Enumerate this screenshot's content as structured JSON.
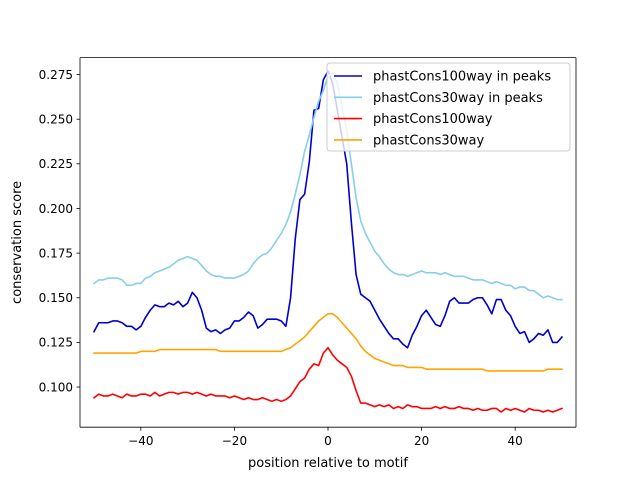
{
  "chart_data": {
    "type": "line",
    "title": "",
    "xlabel": "position relative to motif",
    "ylabel": "conservation score",
    "xlim": [
      -53,
      53
    ],
    "ylim": [
      0.0775,
      0.2845
    ],
    "xticks": [
      -40,
      -20,
      0,
      20,
      40
    ],
    "xtick_labels": [
      "−40",
      "−20",
      "0",
      "20",
      "40"
    ],
    "yticks": [
      0.1,
      0.125,
      0.15,
      0.175,
      0.2,
      0.225,
      0.25,
      0.275
    ],
    "ytick_labels": [
      "0.100",
      "0.125",
      "0.150",
      "0.175",
      "0.200",
      "0.225",
      "0.250",
      "0.275"
    ],
    "grid": false,
    "legend_position": "top-right",
    "x": [
      -50,
      -49,
      -48,
      -47,
      -46,
      -45,
      -44,
      -43,
      -42,
      -41,
      -40,
      -39,
      -38,
      -37,
      -36,
      -35,
      -34,
      -33,
      -32,
      -31,
      -30,
      -29,
      -28,
      -27,
      -26,
      -25,
      -24,
      -23,
      -22,
      -21,
      -20,
      -19,
      -18,
      -17,
      -16,
      -15,
      -14,
      -13,
      -12,
      -11,
      -10,
      -9,
      -8,
      -7,
      -6,
      -5,
      -4,
      -3,
      -2,
      -1,
      0,
      1,
      2,
      3,
      4,
      5,
      6,
      7,
      8,
      9,
      10,
      11,
      12,
      13,
      14,
      15,
      16,
      17,
      18,
      19,
      20,
      21,
      22,
      23,
      24,
      25,
      26,
      27,
      28,
      29,
      30,
      31,
      32,
      33,
      34,
      35,
      36,
      37,
      38,
      39,
      40,
      41,
      42,
      43,
      44,
      45,
      46,
      47,
      48,
      49,
      50
    ],
    "series": [
      {
        "name": "phastCons100way in peaks",
        "color": "#0000cd",
        "values": [
          0.131,
          0.136,
          0.136,
          0.136,
          0.137,
          0.137,
          0.136,
          0.134,
          0.134,
          0.132,
          0.134,
          0.139,
          0.143,
          0.146,
          0.145,
          0.145,
          0.147,
          0.146,
          0.148,
          0.145,
          0.147,
          0.153,
          0.15,
          0.143,
          0.133,
          0.131,
          0.132,
          0.13,
          0.132,
          0.133,
          0.137,
          0.137,
          0.139,
          0.142,
          0.14,
          0.133,
          0.135,
          0.138,
          0.138,
          0.138,
          0.137,
          0.134,
          0.15,
          0.183,
          0.205,
          0.208,
          0.226,
          0.255,
          0.256,
          0.272,
          0.277,
          0.27,
          0.255,
          0.24,
          0.225,
          0.192,
          0.163,
          0.152,
          0.15,
          0.148,
          0.143,
          0.138,
          0.134,
          0.13,
          0.127,
          0.127,
          0.124,
          0.122,
          0.129,
          0.134,
          0.14,
          0.143,
          0.139,
          0.135,
          0.134,
          0.14,
          0.148,
          0.15,
          0.147,
          0.147,
          0.147,
          0.149,
          0.15,
          0.15,
          0.146,
          0.141,
          0.149,
          0.149,
          0.143,
          0.14,
          0.134,
          0.13,
          0.131,
          0.125,
          0.127,
          0.13,
          0.129,
          0.132,
          0.125,
          0.125,
          0.128
        ]
      },
      {
        "name": "phastCons30way in peaks",
        "color": "#87ceeb",
        "values": [
          0.158,
          0.16,
          0.16,
          0.161,
          0.161,
          0.161,
          0.16,
          0.157,
          0.157,
          0.158,
          0.158,
          0.161,
          0.162,
          0.164,
          0.165,
          0.166,
          0.167,
          0.169,
          0.171,
          0.172,
          0.173,
          0.172,
          0.171,
          0.168,
          0.165,
          0.163,
          0.162,
          0.162,
          0.161,
          0.161,
          0.161,
          0.162,
          0.163,
          0.165,
          0.169,
          0.172,
          0.174,
          0.175,
          0.178,
          0.182,
          0.186,
          0.191,
          0.198,
          0.208,
          0.219,
          0.232,
          0.241,
          0.251,
          0.26,
          0.266,
          0.274,
          0.276,
          0.27,
          0.257,
          0.243,
          0.225,
          0.206,
          0.193,
          0.186,
          0.181,
          0.176,
          0.173,
          0.169,
          0.166,
          0.164,
          0.163,
          0.163,
          0.162,
          0.163,
          0.164,
          0.165,
          0.164,
          0.164,
          0.164,
          0.163,
          0.164,
          0.163,
          0.162,
          0.162,
          0.162,
          0.161,
          0.16,
          0.16,
          0.16,
          0.159,
          0.158,
          0.159,
          0.158,
          0.157,
          0.157,
          0.155,
          0.156,
          0.156,
          0.154,
          0.154,
          0.152,
          0.15,
          0.151,
          0.15,
          0.149,
          0.149
        ]
      },
      {
        "name": "phastCons100way",
        "color": "#ff0000",
        "values": [
          0.094,
          0.096,
          0.095,
          0.095,
          0.096,
          0.095,
          0.094,
          0.096,
          0.095,
          0.095,
          0.096,
          0.096,
          0.095,
          0.097,
          0.095,
          0.096,
          0.097,
          0.097,
          0.096,
          0.097,
          0.097,
          0.096,
          0.097,
          0.096,
          0.095,
          0.096,
          0.095,
          0.095,
          0.095,
          0.094,
          0.095,
          0.094,
          0.093,
          0.094,
          0.093,
          0.093,
          0.094,
          0.093,
          0.092,
          0.093,
          0.092,
          0.093,
          0.095,
          0.099,
          0.103,
          0.105,
          0.11,
          0.113,
          0.112,
          0.119,
          0.122,
          0.118,
          0.115,
          0.113,
          0.111,
          0.106,
          0.098,
          0.091,
          0.091,
          0.09,
          0.089,
          0.09,
          0.089,
          0.09,
          0.088,
          0.089,
          0.088,
          0.09,
          0.089,
          0.089,
          0.088,
          0.088,
          0.088,
          0.089,
          0.088,
          0.089,
          0.088,
          0.088,
          0.089,
          0.088,
          0.088,
          0.087,
          0.088,
          0.087,
          0.087,
          0.088,
          0.088,
          0.086,
          0.088,
          0.087,
          0.088,
          0.087,
          0.086,
          0.088,
          0.087,
          0.087,
          0.086,
          0.087,
          0.086,
          0.087,
          0.088
        ]
      },
      {
        "name": "phastCons30way",
        "color": "#ffa500",
        "values": [
          0.119,
          0.119,
          0.119,
          0.119,
          0.119,
          0.119,
          0.119,
          0.119,
          0.119,
          0.119,
          0.12,
          0.12,
          0.12,
          0.12,
          0.121,
          0.121,
          0.121,
          0.121,
          0.121,
          0.121,
          0.121,
          0.121,
          0.121,
          0.121,
          0.121,
          0.121,
          0.121,
          0.12,
          0.12,
          0.12,
          0.12,
          0.12,
          0.12,
          0.12,
          0.12,
          0.12,
          0.12,
          0.12,
          0.12,
          0.12,
          0.12,
          0.121,
          0.122,
          0.124,
          0.126,
          0.128,
          0.131,
          0.134,
          0.137,
          0.139,
          0.141,
          0.141,
          0.139,
          0.136,
          0.133,
          0.13,
          0.127,
          0.123,
          0.12,
          0.118,
          0.116,
          0.115,
          0.114,
          0.113,
          0.112,
          0.112,
          0.112,
          0.111,
          0.111,
          0.111,
          0.111,
          0.11,
          0.11,
          0.11,
          0.11,
          0.11,
          0.11,
          0.11,
          0.11,
          0.11,
          0.11,
          0.11,
          0.11,
          0.11,
          0.109,
          0.109,
          0.109,
          0.109,
          0.109,
          0.109,
          0.109,
          0.109,
          0.109,
          0.109,
          0.109,
          0.109,
          0.109,
          0.11,
          0.11,
          0.11,
          0.11
        ]
      }
    ]
  }
}
